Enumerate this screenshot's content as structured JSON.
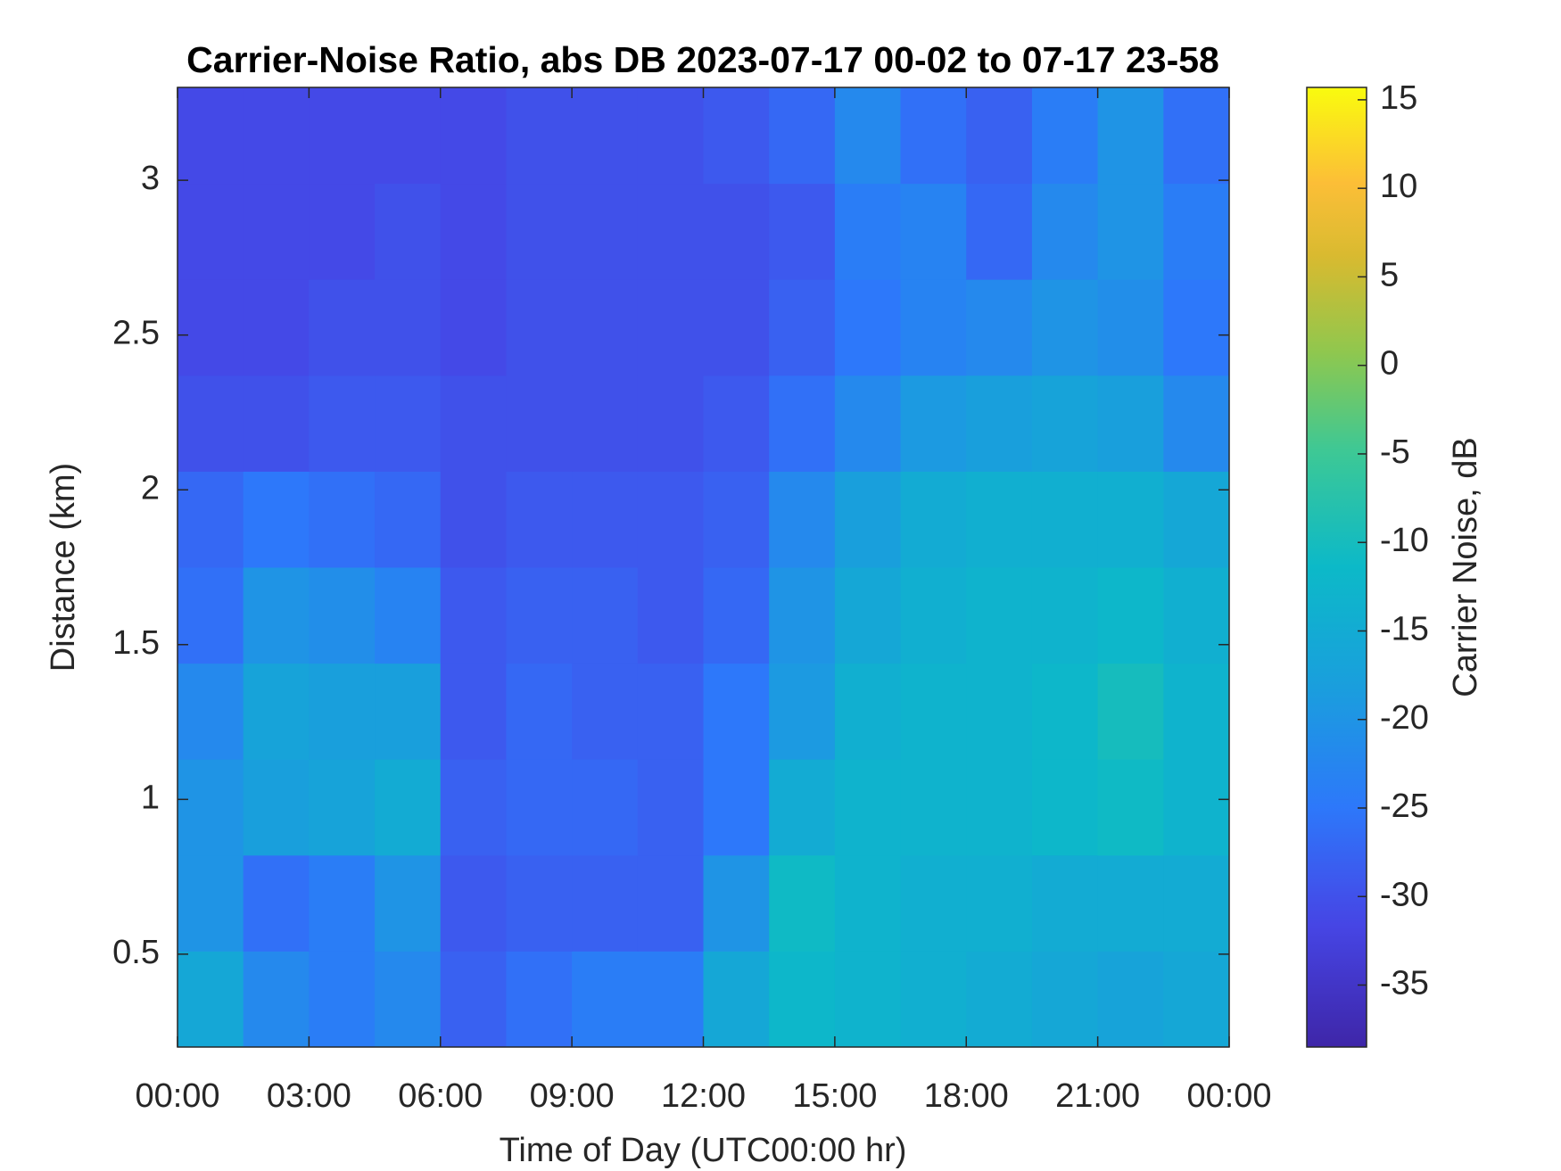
{
  "chart_data": {
    "type": "heatmap",
    "title": "Carrier-Noise Ratio, abs DB 2023-07-17 00-02 to 07-17 23-58",
    "x_label": "Time of Day (UTC00:00 hr)",
    "y_label": "Distance (km)",
    "colorbar_label": "Carrier Noise, dB",
    "colormap": "parula",
    "xlim": [
      0,
      24
    ],
    "ylim": [
      0.2,
      3.3
    ],
    "clim": [
      -38.5,
      15.7
    ],
    "xticks": [
      {
        "value": 0,
        "label": "00:00"
      },
      {
        "value": 3,
        "label": "03:00"
      },
      {
        "value": 6,
        "label": "06:00"
      },
      {
        "value": 9,
        "label": "09:00"
      },
      {
        "value": 12,
        "label": "12:00"
      },
      {
        "value": 15,
        "label": "15:00"
      },
      {
        "value": 18,
        "label": "18:00"
      },
      {
        "value": 21,
        "label": "21:00"
      },
      {
        "value": 24,
        "label": "00:00"
      }
    ],
    "yticks": [
      0.5,
      1,
      1.5,
      2,
      2.5,
      3
    ],
    "cticks": [
      15,
      10,
      5,
      0,
      -5,
      -10,
      -15,
      -20,
      -25,
      -30,
      -35
    ],
    "x": [
      0.75,
      2.25,
      3.75,
      5.25,
      6.75,
      8.25,
      9.75,
      11.25,
      12.75,
      14.25,
      15.75,
      17.25,
      18.75,
      20.25,
      21.75,
      23.25
    ],
    "y": [
      0.355,
      0.665,
      0.975,
      1.285,
      1.595,
      1.905,
      2.215,
      2.525,
      2.835,
      3.145
    ],
    "z": [
      [
        -16,
        -22,
        -24,
        -22,
        -28,
        -26,
        -24,
        -24,
        -16,
        -12,
        -13,
        -14,
        -15,
        -16,
        -17,
        -16
      ],
      [
        -20,
        -26,
        -24,
        -20,
        -29,
        -28,
        -28,
        -28,
        -20,
        -11,
        -13,
        -14,
        -14,
        -15,
        -15,
        -15
      ],
      [
        -20,
        -18,
        -17,
        -15,
        -28,
        -27,
        -27,
        -28,
        -25,
        -15,
        -13,
        -13,
        -13,
        -12,
        -11,
        -13
      ],
      [
        -22,
        -17,
        -18,
        -18,
        -29,
        -27,
        -28,
        -28,
        -25,
        -19,
        -14,
        -13,
        -13,
        -12,
        -10,
        -13
      ],
      [
        -26,
        -20,
        -21,
        -23,
        -29,
        -28,
        -28,
        -29,
        -27,
        -20,
        -16,
        -14,
        -13,
        -13,
        -12,
        -14
      ],
      [
        -27,
        -25,
        -26,
        -27,
        -30,
        -29,
        -29,
        -29,
        -28,
        -22,
        -18,
        -15,
        -14,
        -14,
        -14,
        -16
      ],
      [
        -30,
        -30,
        -29,
        -29,
        -30,
        -30,
        -30,
        -30,
        -29,
        -26,
        -22,
        -19,
        -18,
        -17,
        -18,
        -22
      ],
      [
        -31,
        -31,
        -30,
        -30,
        -31,
        -30,
        -30,
        -30,
        -30,
        -28,
        -25,
        -23,
        -22,
        -20,
        -21,
        -25
      ],
      [
        -31,
        -31,
        -31,
        -30,
        -31,
        -30,
        -30,
        -30,
        -30,
        -29,
        -24,
        -23,
        -27,
        -22,
        -20,
        -24
      ],
      [
        -31,
        -31,
        -31,
        -31,
        -31,
        -30,
        -30,
        -30,
        -29,
        -27,
        -22,
        -26,
        -28,
        -24,
        -20,
        -26
      ]
    ]
  }
}
